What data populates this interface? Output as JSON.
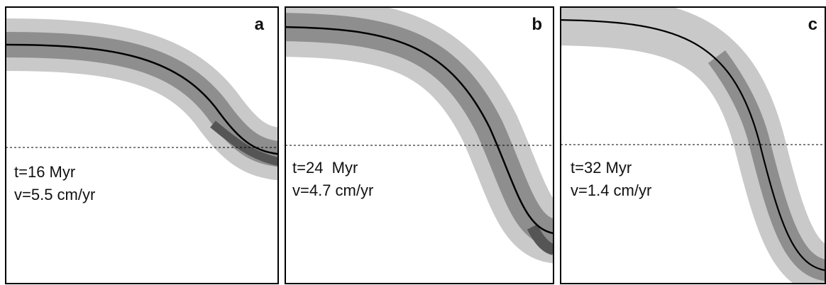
{
  "panels": [
    {
      "label": "a",
      "time": "t=16 Myr",
      "velocity": "v=5.5 cm/yr"
    },
    {
      "label": "b",
      "time": "t=24  Myr",
      "velocity": "v=4.7 cm/yr"
    },
    {
      "label": "c",
      "time": "t=32 Myr",
      "velocity": "v=1.4 cm/yr"
    }
  ]
}
